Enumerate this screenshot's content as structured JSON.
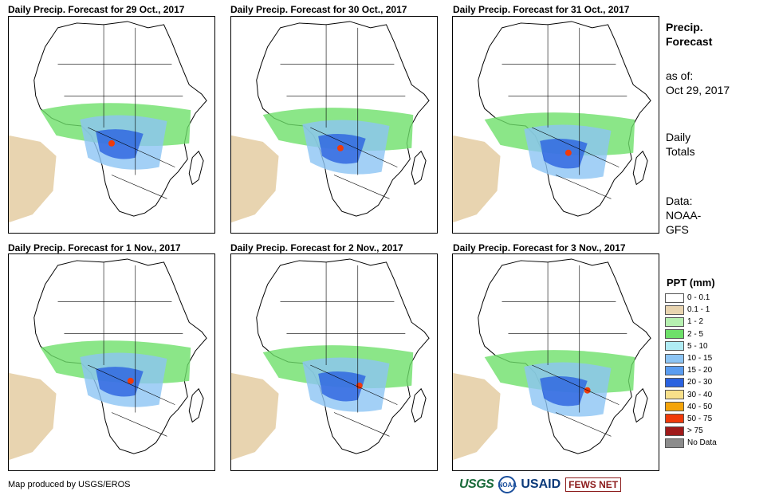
{
  "panels": [
    {
      "title": "Daily Precip. Forecast for 29 Oct., 2017"
    },
    {
      "title": "Daily Precip. Forecast for 30 Oct., 2017"
    },
    {
      "title": "Daily Precip. Forecast for 31 Oct., 2017"
    },
    {
      "title": "Daily Precip. Forecast for 1 Nov., 2017"
    },
    {
      "title": "Daily Precip. Forecast for 2 Nov., 2017"
    },
    {
      "title": "Daily Precip. Forecast for 3 Nov., 2017"
    }
  ],
  "sidebar": {
    "heading_line1": "Precip.",
    "heading_line2": "Forecast",
    "asof_line1": "as of:",
    "asof_line2": "Oct 29, 2017",
    "totals_line1": "Daily",
    "totals_line2": "Totals",
    "data_line1": "Data:",
    "data_line2": "NOAA-",
    "data_line3": "GFS"
  },
  "legend": {
    "title": "PPT (mm)",
    "items": [
      {
        "label": "0 - 0.1",
        "color": "#ffffff"
      },
      {
        "label": "0.1 - 1",
        "color": "#e8d4b0"
      },
      {
        "label": "1 - 2",
        "color": "#b6f0b0"
      },
      {
        "label": "2 - 5",
        "color": "#6ee06a"
      },
      {
        "label": "5 - 10",
        "color": "#b0ecf4"
      },
      {
        "label": "10 - 15",
        "color": "#8cc4f4"
      },
      {
        "label": "15 - 20",
        "color": "#5a9cf0"
      },
      {
        "label": "20 - 30",
        "color": "#2a62e0"
      },
      {
        "label": "30 - 40",
        "color": "#f8e08a"
      },
      {
        "label": "40 - 50",
        "color": "#f4a40a"
      },
      {
        "label": "50 - 75",
        "color": "#f03a0a"
      },
      {
        "label": "> 75",
        "color": "#a01a1a"
      },
      {
        "label": "No Data",
        "color": "#8c8c8c"
      }
    ]
  },
  "footer": {
    "credit": "Map produced by USGS/EROS"
  },
  "logos": {
    "usgs": "USGS",
    "noaa": "NOAA",
    "usaid": "USAID",
    "fews": "FEWS NET"
  }
}
